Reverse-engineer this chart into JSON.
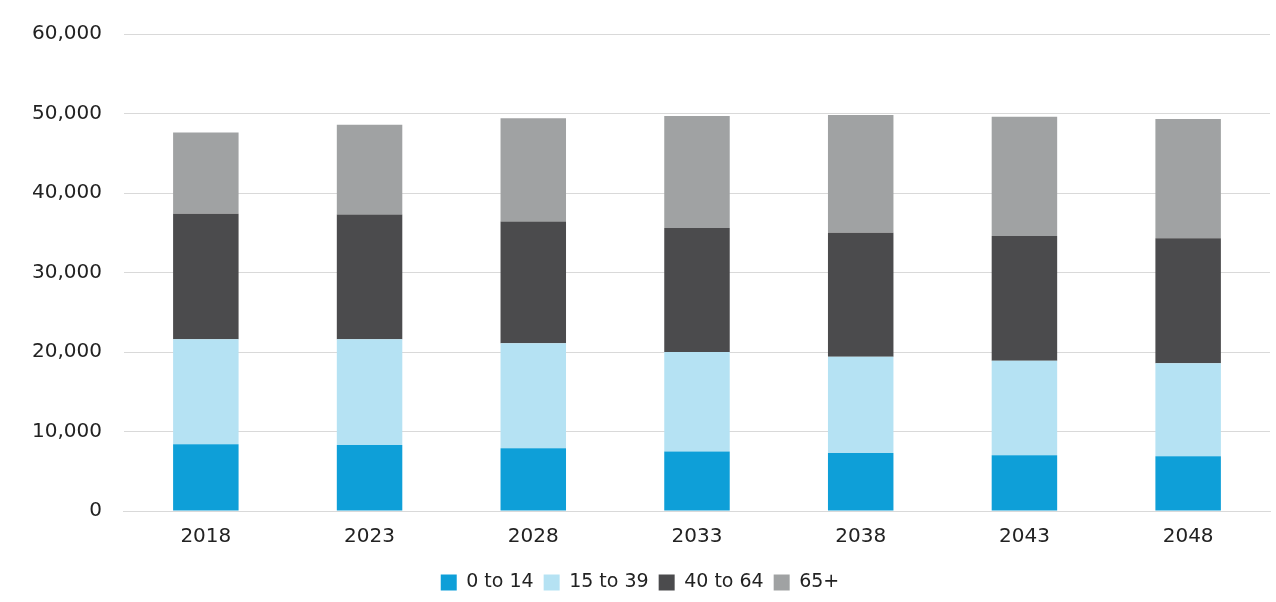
{
  "chart_data": {
    "type": "bar",
    "stacked": true,
    "categories": [
      "2018",
      "2023",
      "2028",
      "2033",
      "2038",
      "2043",
      "2048"
    ],
    "series": [
      {
        "name": "0 to 14",
        "color": "#0e9fd8",
        "values": [
          8400,
          8300,
          7900,
          7500,
          7300,
          7000,
          6900
        ]
      },
      {
        "name": "15 to 39",
        "color": "#b5e2f3",
        "values": [
          13200,
          13300,
          13200,
          12500,
          12100,
          11900,
          11700
        ]
      },
      {
        "name": "40 to 64",
        "color": "#4b4b4d",
        "values": [
          15800,
          15700,
          15300,
          15600,
          15600,
          15700,
          15700
        ]
      },
      {
        "name": "65+",
        "color": "#a0a2a3",
        "values": [
          10200,
          11300,
          13000,
          14100,
          14800,
          15000,
          15000
        ]
      }
    ],
    "ylim": [
      0,
      60000
    ],
    "yticks": [
      0,
      {
        "value": 10000,
        "label": "10,000"
      },
      {
        "value": 20000,
        "label": "20,000"
      },
      {
        "value": 30000,
        "label": "30,000"
      },
      {
        "value": 40000,
        "label": "40,000"
      },
      {
        "value": 50000,
        "label": "50,000"
      },
      {
        "value": 60000,
        "label": "60,000"
      }
    ],
    "grid": "y",
    "legend": "bottom"
  }
}
